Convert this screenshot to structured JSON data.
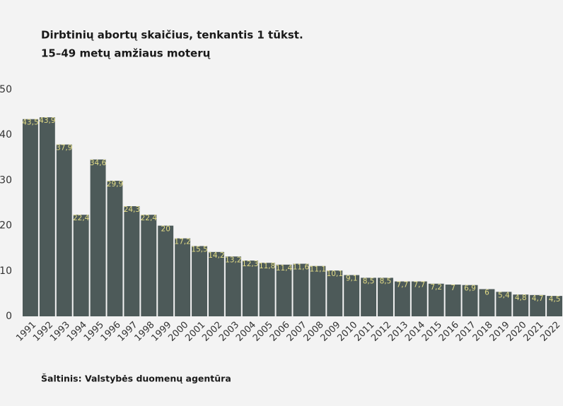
{
  "chart_data": {
    "type": "bar",
    "title": [
      "Dirbtinių abortų skaičius, tenkantis 1 tūkst.",
      "15–49 metų amžiaus moterų"
    ],
    "source": "Šaltinis: Valstybės duomenų agentūra",
    "categories": [
      "1991",
      "1992",
      "1993",
      "1994",
      "1995",
      "1996",
      "1997",
      "1998",
      "1999",
      "2000",
      "2001",
      "2002",
      "2003",
      "2004",
      "2005",
      "2006",
      "2007",
      "2008",
      "2009",
      "2010",
      "2011",
      "2012",
      "2013",
      "2014",
      "2015",
      "2016",
      "2017",
      "2018",
      "2019",
      "2020",
      "2021",
      "2022"
    ],
    "values": [
      43.5,
      43.9,
      37.9,
      22.4,
      34.6,
      29.9,
      24.3,
      22.4,
      20,
      17.2,
      15.5,
      14.2,
      13.2,
      12.3,
      11.8,
      11.4,
      11.6,
      11.1,
      10.1,
      9.1,
      8.5,
      8.5,
      7.7,
      7.7,
      7.2,
      7,
      6.9,
      6,
      5.4,
      4.8,
      4.7,
      4.5
    ],
    "value_labels": [
      "43,5",
      "43,9",
      "37,9",
      "22,4",
      "34,6",
      "29,9",
      "24,3",
      "22,4",
      "20",
      "17,2",
      "15,5",
      "14,2",
      "13,2",
      "12,3",
      "11,8",
      "11,4",
      "11,6",
      "11,1",
      "10,1",
      "9,1",
      "8,5",
      "8,5",
      "7,7",
      "7,7",
      "7,2",
      "7",
      "6,9",
      "6",
      "5,4",
      "4,8",
      "4,7",
      "4,5"
    ],
    "color": "#4d5a59",
    "label_color": "#e3dc86",
    "ylim": [
      0,
      50
    ],
    "yticks": [
      0,
      10,
      20,
      30,
      40,
      50
    ],
    "grid": false
  }
}
